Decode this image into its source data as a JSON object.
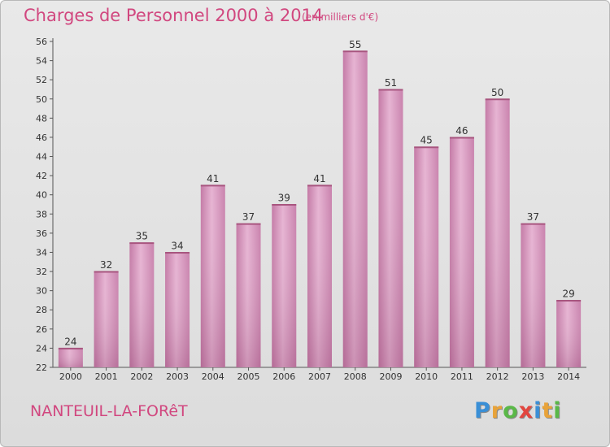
{
  "chart_data": {
    "type": "bar",
    "title": "Charges de Personnel 2000 à 2014",
    "subtitle": "(en milliers d'€)",
    "categories": [
      "2000",
      "2001",
      "2002",
      "2003",
      "2004",
      "2005",
      "2006",
      "2007",
      "2008",
      "2009",
      "2010",
      "2011",
      "2012",
      "2013",
      "2014"
    ],
    "values": [
      24,
      32,
      35,
      34,
      41,
      37,
      39,
      41,
      55,
      51,
      45,
      46,
      50,
      37,
      29
    ],
    "ylim": [
      22,
      56
    ],
    "yticks": [
      22,
      24,
      26,
      28,
      30,
      32,
      34,
      36,
      38,
      40,
      42,
      44,
      46,
      48,
      50,
      52,
      54,
      56
    ],
    "grid": false,
    "bar_color": "#d89bbf"
  },
  "footer": {
    "commune": "NANTEUIL-LA-FORêT",
    "logo_letters": [
      "P",
      "r",
      "o",
      "x",
      "i",
      "t",
      "i"
    ],
    "logo_colors": [
      "#3a8fd6",
      "#e8a33a",
      "#5ab848",
      "#e2463f",
      "#3a8fd6",
      "#e8a33a",
      "#5ab848"
    ]
  },
  "colors": {
    "accent": "#d1477f"
  }
}
